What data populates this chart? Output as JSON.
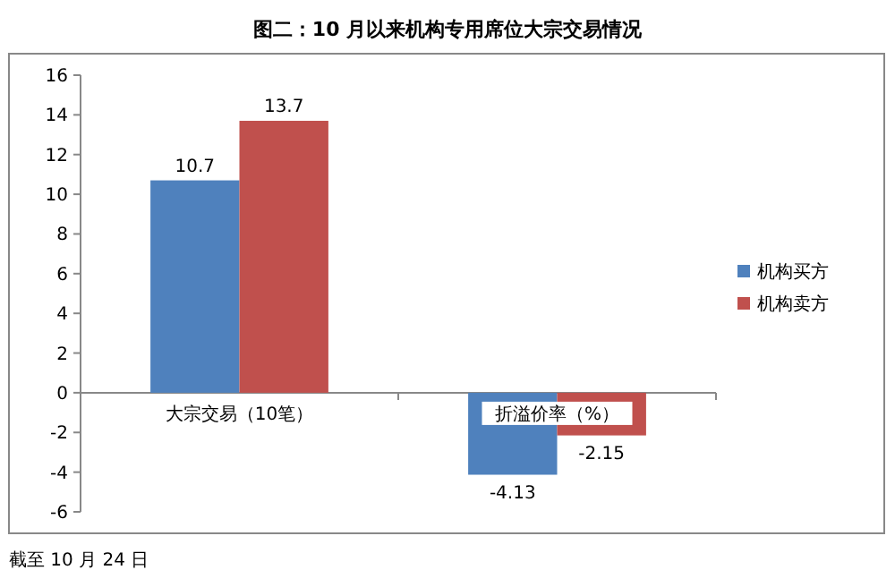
{
  "chart_data": {
    "type": "bar",
    "title": "图二：10 月以来机构专用席位大宗交易情况",
    "categories": [
      "大宗交易（10笔）",
      "折溢价率（%）"
    ],
    "series": [
      {
        "name": "机构买方",
        "color": "#4f81bd",
        "values": [
          10.7,
          -4.13
        ]
      },
      {
        "name": "机构卖方",
        "color": "#c0504d",
        "values": [
          13.7,
          -2.15
        ]
      }
    ],
    "ylim": [
      -6,
      16
    ],
    "yticks": [
      -6,
      -4,
      -2,
      0,
      2,
      4,
      6,
      8,
      10,
      12,
      14,
      16
    ],
    "grid": false,
    "legend": "right",
    "data_labels": true,
    "annotations": [
      "截至 10 月 24 日"
    ]
  }
}
